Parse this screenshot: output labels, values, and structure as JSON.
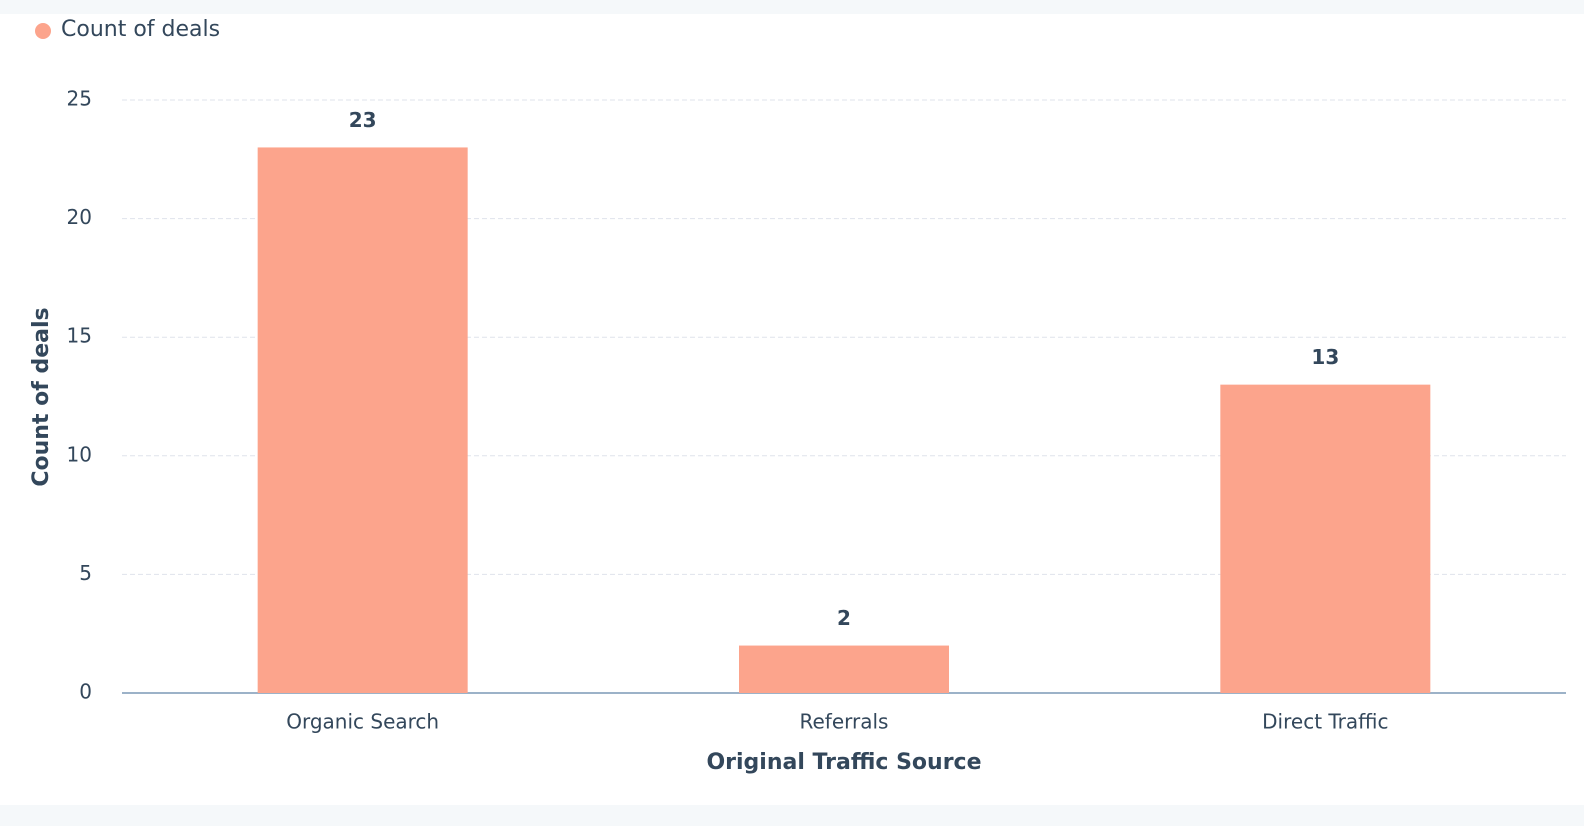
{
  "chart_data": {
    "type": "bar",
    "legend": "Count of deals",
    "x_label": "Original Traffic Source",
    "y_label": "Count of deals",
    "categories": [
      "Organic Search",
      "Referrals",
      "Direct Traffic"
    ],
    "values": [
      23,
      2,
      13
    ],
    "color": "#fca48c",
    "ylim": [
      0,
      25
    ],
    "yticks": [
      0,
      5,
      10,
      15,
      20,
      25
    ],
    "grid": true
  }
}
